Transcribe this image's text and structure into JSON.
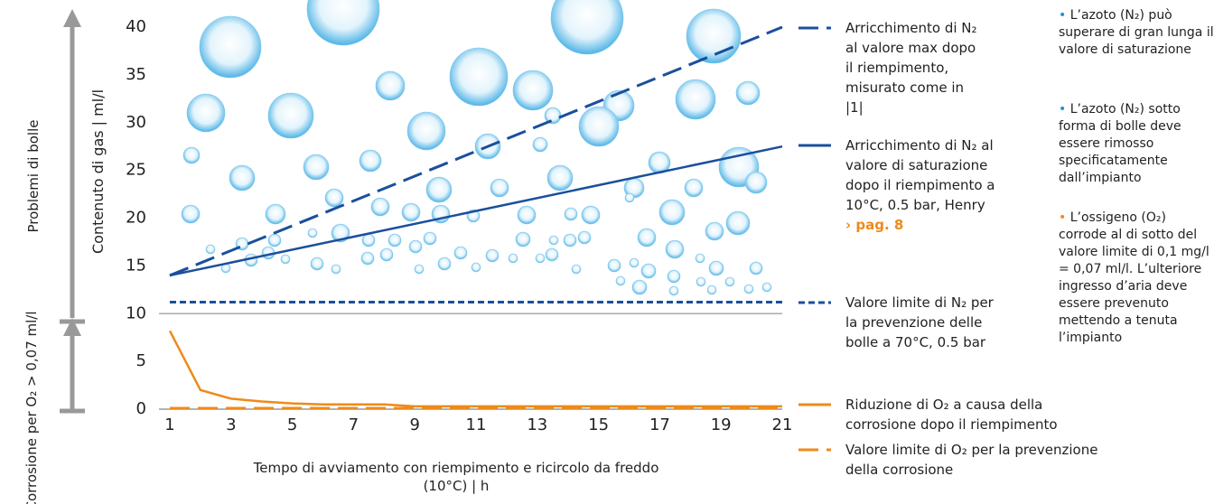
{
  "chart_data": {
    "type": "line",
    "y_label": "Contenuto di gas | ml/l",
    "x_label": "Tempo di avviamento con riempimento e ricircolo da freddo (10°C) | h",
    "side_labels": [
      "Problemi di bolle",
      "Corrosione per O₂ > 0,07 ml/l"
    ],
    "xlim": [
      1,
      21
    ],
    "xticks": [
      1,
      3,
      5,
      7,
      9,
      11,
      13,
      15,
      17,
      19,
      21
    ],
    "ylim": [
      0,
      40
    ],
    "yticks": [
      0,
      5,
      10,
      15,
      20,
      25,
      30,
      35,
      40
    ],
    "reference_line": 10,
    "series": [
      {
        "name": "Arricchimento di N₂ al valore max dopo il riempimento, misurato come in |1|",
        "color": "#1a4f9c",
        "dash": "dashed",
        "x": [
          1,
          21
        ],
        "values": [
          14,
          40
        ]
      },
      {
        "name": "Arricchimento di N₂ al valore di saturazione dopo il riempimento a 10°C, 0.5 bar, Henry",
        "link": "› pag. 8",
        "color": "#1a4f9c",
        "dash": "solid",
        "x": [
          1,
          21
        ],
        "values": [
          14,
          27.5
        ]
      },
      {
        "name": "Valore limite di N₂ per la prevenzione delle bolle a 70°C, 0.5 bar",
        "color": "#1a4f9c",
        "dash": "dotted",
        "x": [
          1,
          21
        ],
        "values": [
          11.2,
          11.2
        ]
      },
      {
        "name": "Riduzione di O₂ a causa della corrosione dopo il riempimento",
        "color": "#ee8a1a",
        "dash": "solid",
        "x": [
          1,
          2,
          3,
          4,
          5,
          6,
          7,
          8,
          9,
          10,
          11,
          12,
          13,
          14,
          15,
          16,
          17,
          18,
          19,
          20,
          21
        ],
        "values": [
          8.2,
          2.0,
          1.1,
          0.8,
          0.6,
          0.5,
          0.5,
          0.5,
          0.3,
          0.3,
          0.3,
          0.3,
          0.3,
          0.3,
          0.3,
          0.3,
          0.3,
          0.3,
          0.3,
          0.3,
          0.3
        ]
      },
      {
        "name": "Valore limite di O₂ per la prevenzione della corrosione",
        "color": "#ee8a1a",
        "dash": "dashed",
        "x": [
          1,
          21
        ],
        "values": [
          0.1,
          0.1
        ]
      }
    ],
    "notes": [
      "L’azoto (N₂) può superare di gran lunga il valore di saturazione",
      "L’azoto (N₂) sotto forma di bolle deve essere rimosso specificatamente dall’impianto",
      "L’ossigeno (O₂) corrode al di sotto del valore limite di 0,1 mg/l = 0,07 ml/l. L’ulteriore ingresso d’aria deve essere prevenuto mettendo a tenuta l’impianto"
    ]
  }
}
